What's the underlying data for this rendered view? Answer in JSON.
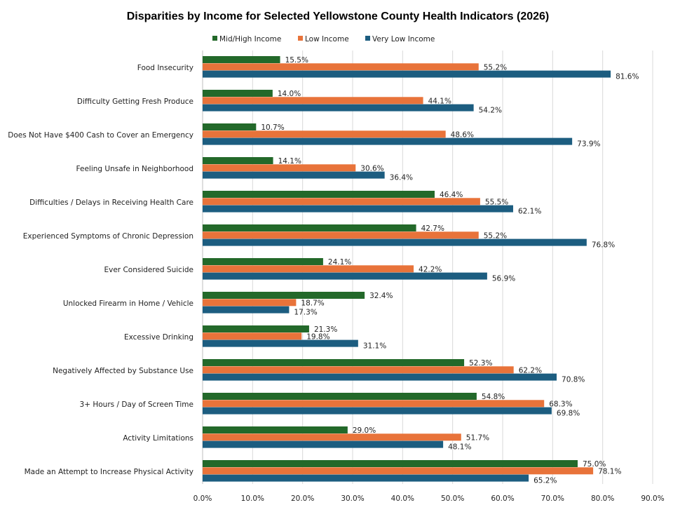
{
  "chart_data": {
    "type": "bar",
    "orientation": "horizontal",
    "title": "Disparities by Income for Selected Yellowstone County Health Indicators (2026)",
    "categories": [
      "Food Insecurity",
      "Difficulty Getting Fresh Produce",
      "Does Not Have $400 Cash to Cover an Emergency",
      "Feeling Unsafe in Neighborhood",
      "Difficulties / Delays in Receiving Health Care",
      "Experienced Symptoms of Chronic Depression",
      "Ever Considered Suicide",
      "Unlocked Firearm in Home / Vehicle",
      "Excessive Drinking",
      "Negatively Affected by Substance Use",
      "3+ Hours / Day of Screen Time",
      "Activity Limitations",
      "Made an Attempt to Increase Physical Activity"
    ],
    "series": [
      {
        "name": "Mid/High Income",
        "color": "#23692A",
        "values": [
          15.5,
          14.0,
          10.7,
          14.1,
          46.4,
          42.7,
          24.1,
          32.4,
          21.3,
          52.3,
          54.8,
          29.0,
          75.0
        ]
      },
      {
        "name": "Low Income",
        "color": "#E8733A",
        "values": [
          55.2,
          44.1,
          48.6,
          30.6,
          55.5,
          55.2,
          42.2,
          18.7,
          19.8,
          62.2,
          68.3,
          51.7,
          78.1
        ]
      },
      {
        "name": "Very Low Income",
        "color": "#1C5D80",
        "values": [
          81.6,
          54.2,
          73.9,
          36.4,
          62.1,
          76.8,
          56.9,
          17.3,
          31.1,
          70.8,
          69.8,
          48.1,
          65.2
        ]
      }
    ],
    "xlim": [
      0,
      90
    ],
    "xticks": [
      "0.0%",
      "10.0%",
      "20.0%",
      "30.0%",
      "40.0%",
      "50.0%",
      "60.0%",
      "70.0%",
      "80.0%",
      "90.0%"
    ],
    "value_format": "percent, 1 decimal",
    "grid": "vertical",
    "legend": "top"
  }
}
